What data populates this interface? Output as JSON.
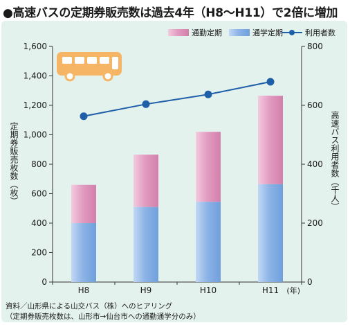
{
  "title": "●高速バスの定期券販売数は過去4年（H8〜H11）で2倍に増加",
  "chart_data": {
    "type": "bar",
    "categories": [
      "H8",
      "H9",
      "H10",
      "H11"
    ],
    "x_unit": "(年)",
    "series": [
      {
        "name": "通学定期",
        "kind": "bar",
        "stack": "tickets",
        "axis": "left",
        "color": "#9ec0ea",
        "values": [
          400,
          510,
          545,
          665
        ]
      },
      {
        "name": "通勤定期",
        "kind": "bar",
        "stack": "tickets",
        "axis": "left",
        "color": "#e6a4c6",
        "values": [
          260,
          355,
          475,
          600
        ]
      },
      {
        "name": "利用者数",
        "kind": "line",
        "axis": "right",
        "color": "#1f5fa8",
        "values": [
          563,
          604,
          637,
          680
        ]
      }
    ],
    "legend_order": [
      "通勤定期",
      "通学定期",
      "利用者数"
    ],
    "legend_position": "top-right",
    "ylabel": "定期券販売枚数（枚）",
    "y2label": "高速バス利用者数（千人）",
    "ylim": [
      0,
      1600
    ],
    "y2lim": [
      0,
      800
    ],
    "yticks": [
      "0",
      "200",
      "400",
      "600",
      "800",
      "1,000",
      "1,200",
      "1,400",
      "1,600"
    ],
    "y2ticks": [
      "0",
      "200",
      "400",
      "600",
      "800"
    ],
    "grid": false
  },
  "notes": [
    "資料／山形県による山交バス（株）へのヒアリング",
    "（定期券販売枚数は、山形市→仙台市への通勤通学分のみ）"
  ],
  "colors": {
    "background": "#e4f2ee",
    "bus": "#f5b565"
  },
  "icons": [
    "bus-icon"
  ]
}
